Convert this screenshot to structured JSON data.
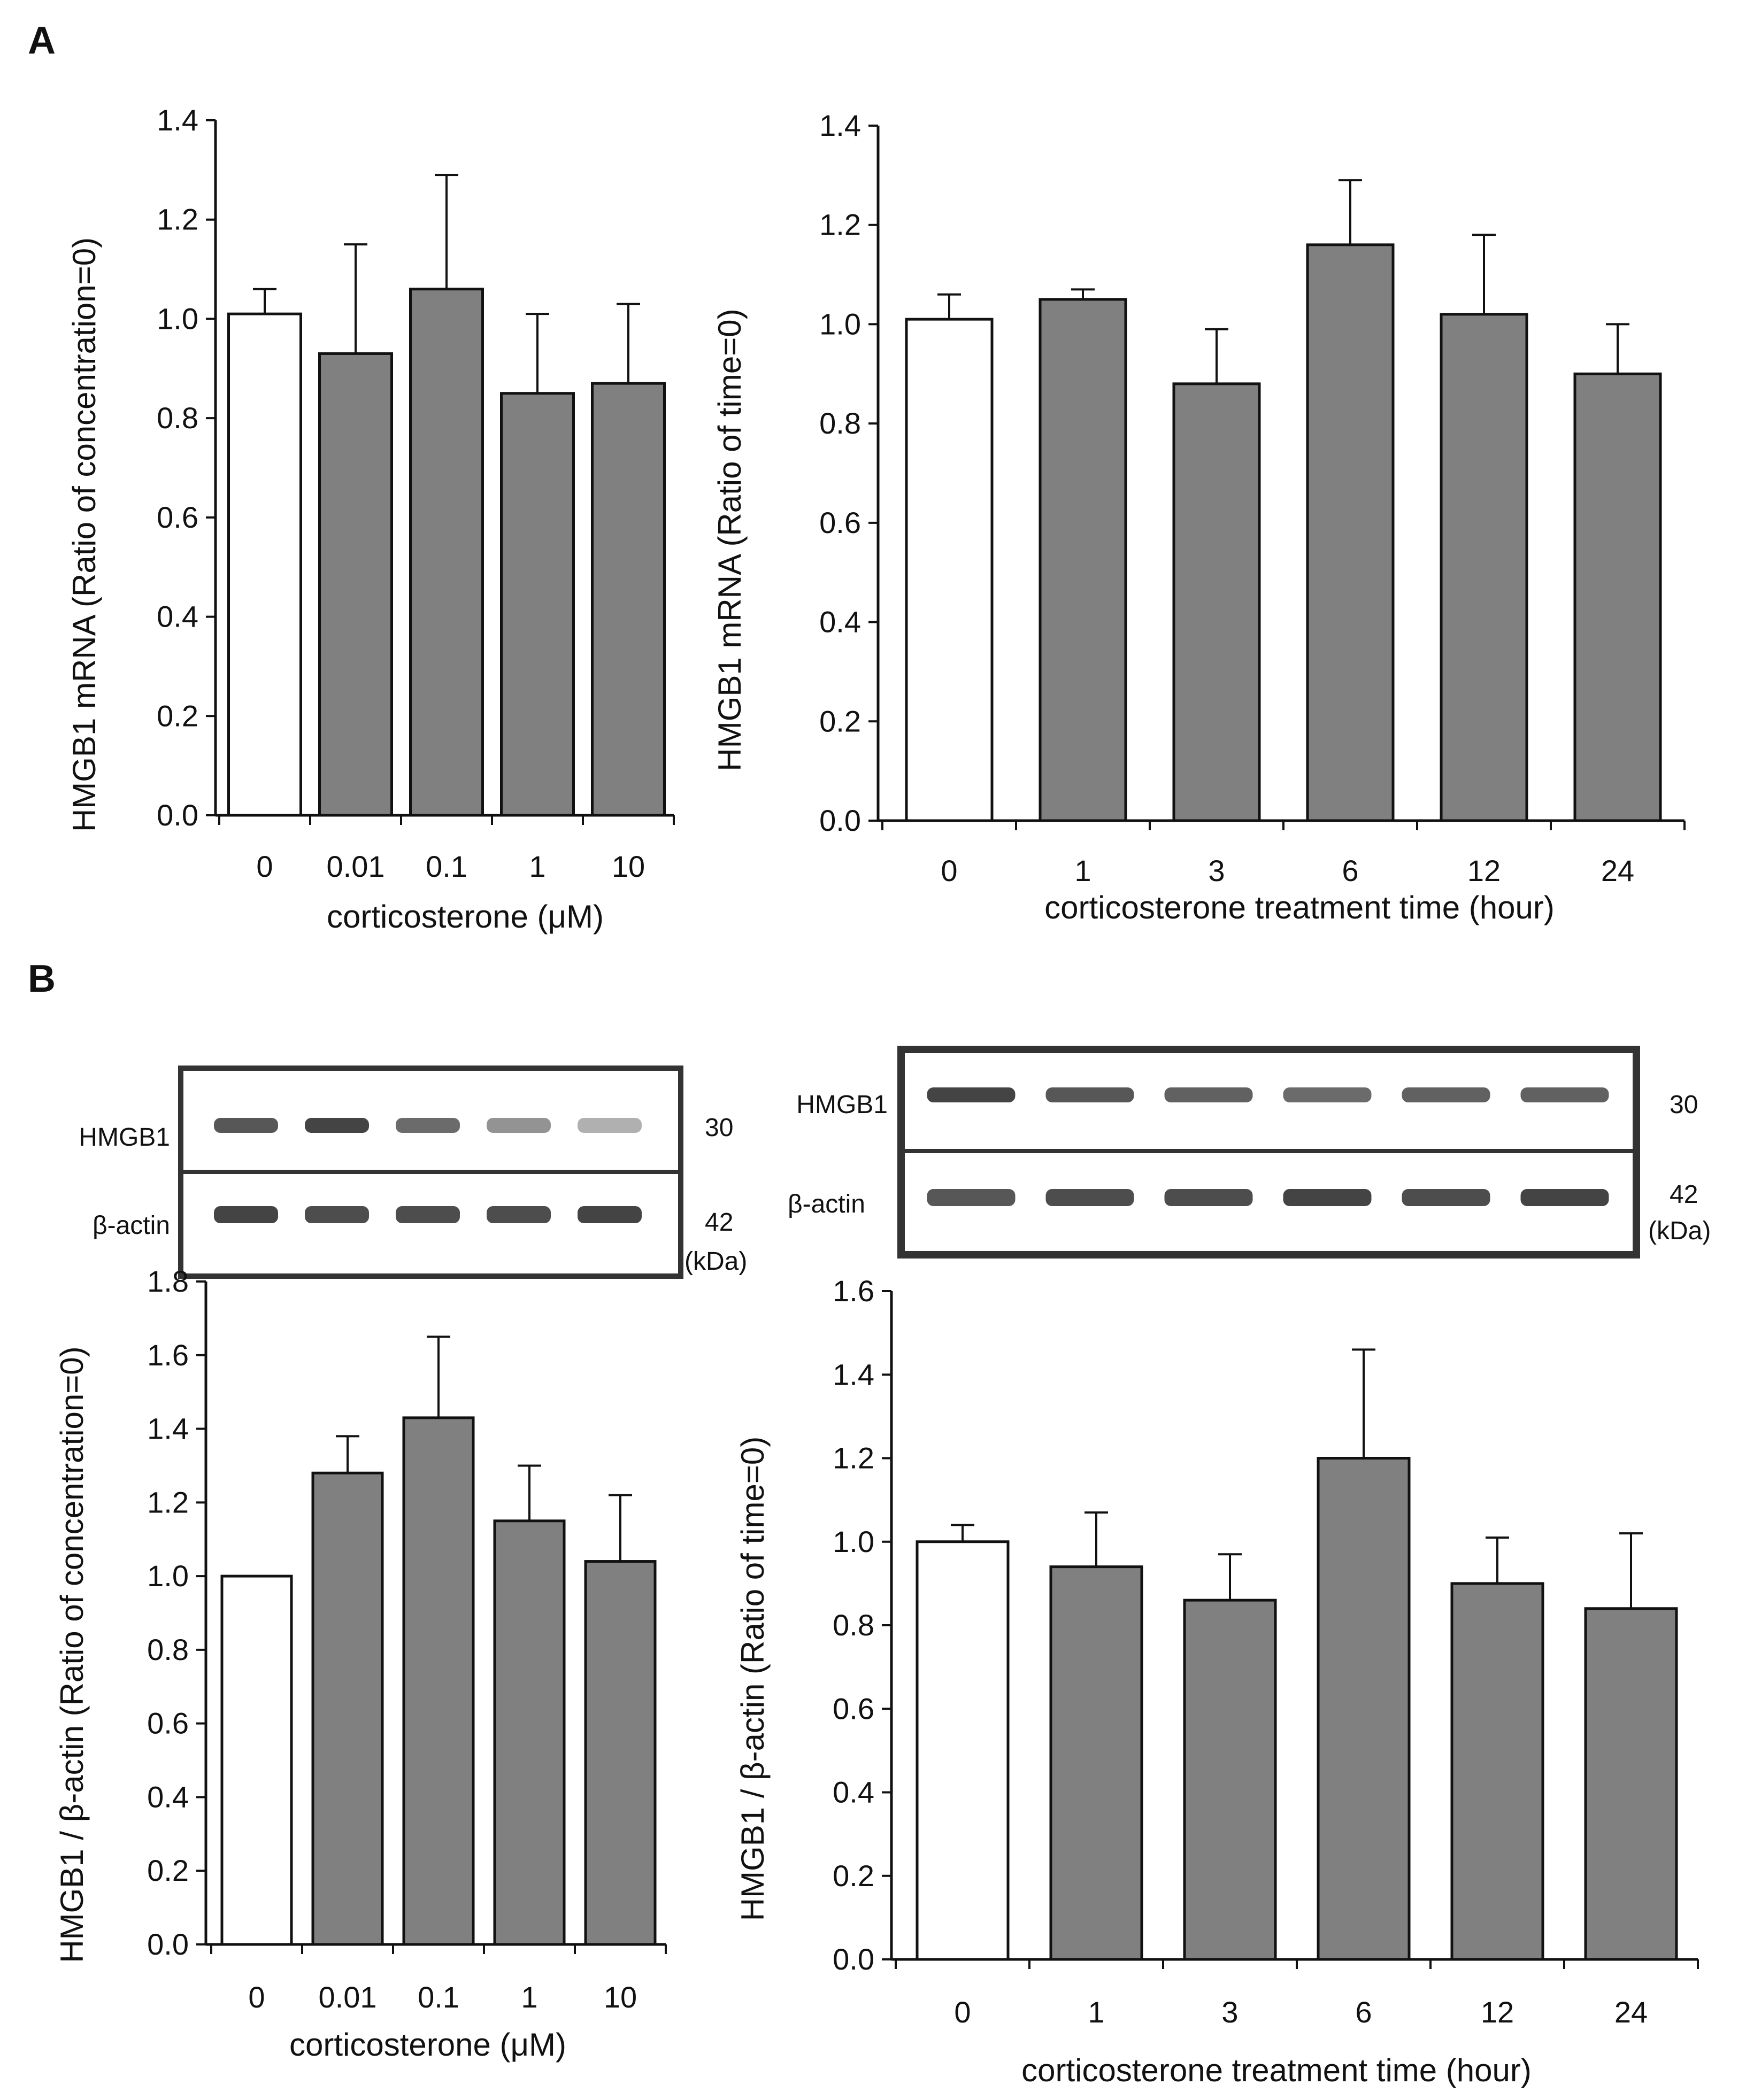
{
  "panel_labels": {
    "a": "A",
    "b": "B"
  },
  "colors": {
    "control_bar": "#ffffff",
    "treated_bar": "#808080",
    "axis": "#111111",
    "blot_frame": "#333333",
    "band": "#3a3a3a"
  },
  "chart_data": [
    {
      "id": "A-left",
      "type": "bar",
      "title": "",
      "categories": [
        "0",
        "0.01",
        "0.1",
        "1",
        "10"
      ],
      "values": [
        1.01,
        0.93,
        1.06,
        0.85,
        0.87
      ],
      "errors": [
        0.05,
        0.22,
        0.23,
        0.16,
        0.16
      ],
      "xlabel": "corticosterone (μM)",
      "ylabel": "HMGB1 mRNA  (Ratio of concentration=0)",
      "ylim": [
        0,
        1.4
      ],
      "yticks": [
        "0.0",
        "0.2",
        "0.4",
        "0.6",
        "0.8",
        "1.0",
        "1.2",
        "1.4"
      ],
      "grid": false
    },
    {
      "id": "A-right",
      "type": "bar",
      "title": "",
      "categories": [
        "0",
        "1",
        "3",
        "6",
        "12",
        "24"
      ],
      "values": [
        1.01,
        1.05,
        0.88,
        1.16,
        1.02,
        0.9
      ],
      "errors": [
        0.05,
        0.02,
        0.11,
        0.13,
        0.16,
        0.1
      ],
      "xlabel": "corticosterone treatment time (hour)",
      "ylabel": "HMGB1 mRNA  (Ratio of time=0)",
      "ylim": [
        0,
        1.4
      ],
      "yticks": [
        "0.0",
        "0.2",
        "0.4",
        "0.6",
        "0.8",
        "1.0",
        "1.2",
        "1.4"
      ],
      "grid": false
    },
    {
      "id": "B-left",
      "type": "bar",
      "title": "",
      "categories": [
        "0",
        "0.01",
        "0.1",
        "1",
        "10"
      ],
      "values": [
        1.0,
        1.28,
        1.43,
        1.15,
        1.04
      ],
      "errors": [
        0.0,
        0.1,
        0.22,
        0.15,
        0.18
      ],
      "xlabel": "corticosterone (μM)",
      "ylabel": "HMGB1 / β-actin  (Ratio of concentration=0)",
      "ylim": [
        0,
        1.8
      ],
      "yticks": [
        "0.0",
        "0.2",
        "0.4",
        "0.6",
        "0.8",
        "1.0",
        "1.2",
        "1.4",
        "1.6",
        "1.8"
      ],
      "grid": false
    },
    {
      "id": "B-right",
      "type": "bar",
      "title": "",
      "categories": [
        "0",
        "1",
        "3",
        "6",
        "12",
        "24"
      ],
      "values": [
        1.0,
        0.94,
        0.86,
        1.2,
        0.9,
        0.84
      ],
      "errors": [
        0.04,
        0.13,
        0.11,
        0.26,
        0.11,
        0.18
      ],
      "xlabel": "corticosterone treatment time (hour)",
      "ylabel": "HMGB1 / β-actin (Ratio of time=0)",
      "ylim": [
        0,
        1.6
      ],
      "yticks": [
        "0.0",
        "0.2",
        "0.4",
        "0.6",
        "0.8",
        "1.0",
        "1.2",
        "1.4",
        "1.6"
      ],
      "grid": false
    }
  ],
  "blots": {
    "left": {
      "hmgb1_label": "HMGB1",
      "actin_label": "β-actin",
      "hmgb1_kda": "30",
      "actin_kda": "42",
      "unit": "(kDa)",
      "hmgb1_intensity": [
        0.85,
        0.95,
        0.75,
        0.55,
        0.4
      ],
      "actin_intensity": [
        0.95,
        0.9,
        0.9,
        0.9,
        0.95
      ]
    },
    "right": {
      "hmgb1_label": "HMGB1",
      "actin_label": "β-actin",
      "hmgb1_kda": "30",
      "actin_kda": "42",
      "unit": "(kDa)",
      "hmgb1_intensity": [
        0.95,
        0.85,
        0.8,
        0.75,
        0.8,
        0.8
      ],
      "actin_intensity": [
        0.85,
        0.9,
        0.9,
        0.95,
        0.9,
        0.95
      ]
    }
  }
}
